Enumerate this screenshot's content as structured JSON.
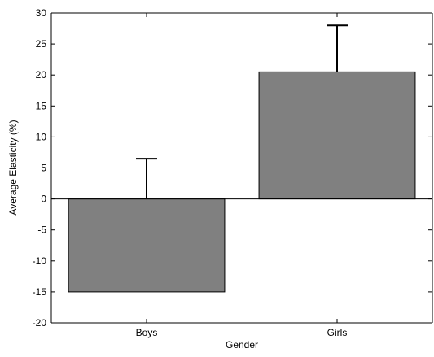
{
  "chart_data": {
    "type": "bar",
    "title": "",
    "xlabel": "Gender",
    "ylabel": "Average Elasticity (%)",
    "categories": [
      "Boys",
      "Girls"
    ],
    "values": [
      -15,
      20.5
    ],
    "error_bars_upper": [
      6.5,
      28
    ],
    "ylim": [
      -20,
      30
    ],
    "yticks": [
      -20,
      -15,
      -10,
      -5,
      0,
      5,
      10,
      15,
      20,
      25,
      30
    ],
    "grid": false,
    "legend": "none",
    "colors": {
      "bar_fill": "#808080",
      "bar_stroke": "#000000",
      "axis": "#000000",
      "background": "#ffffff"
    }
  }
}
